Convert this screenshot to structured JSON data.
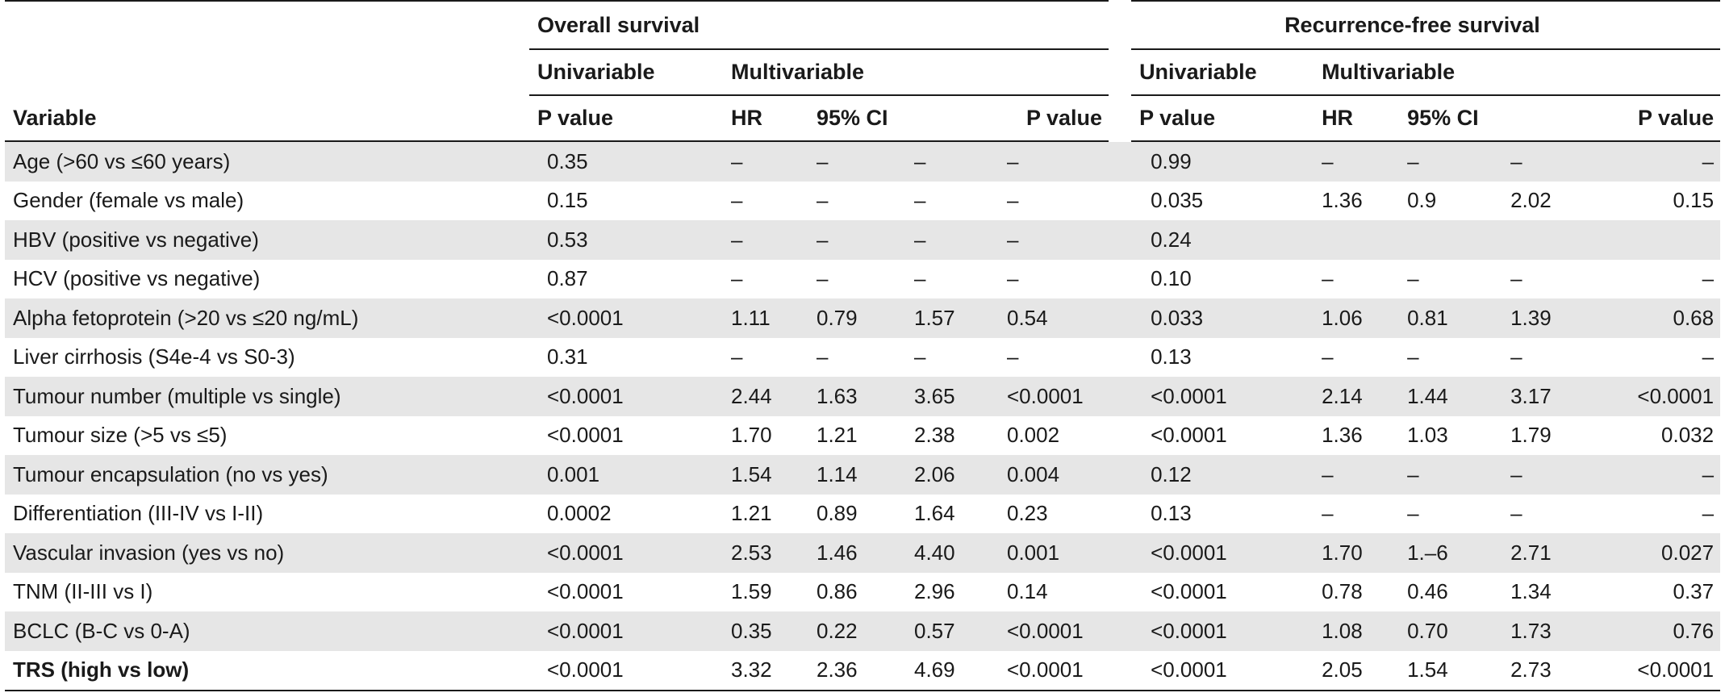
{
  "table": {
    "headers": {
      "variable": "Variable",
      "overall_survival": "Overall survival",
      "recurrence_free_survival": "Recurrence-free survival",
      "univariable": "Univariable",
      "multivariable": "Multivariable",
      "p_value": "P value",
      "hr": "HR",
      "ci": "95% CI"
    },
    "rows": [
      {
        "variable": "Age (>60 vs ≤60 years)",
        "os_uni_p": "0.35",
        "os_hr": "–",
        "os_ci_low": "–",
        "os_ci_high": "–",
        "os_p": "–",
        "rfs_uni_p": "0.99",
        "rfs_hr": "–",
        "rfs_ci_low": "–",
        "rfs_ci_high": "–",
        "rfs_p": "–"
      },
      {
        "variable": "Gender (female vs male)",
        "os_uni_p": "0.15",
        "os_hr": "–",
        "os_ci_low": "–",
        "os_ci_high": "–",
        "os_p": "–",
        "rfs_uni_p": "0.035",
        "rfs_hr": "1.36",
        "rfs_ci_low": "0.9",
        "rfs_ci_high": "2.02",
        "rfs_p": "0.15"
      },
      {
        "variable": "HBV (positive vs negative)",
        "os_uni_p": "0.53",
        "os_hr": "–",
        "os_ci_low": "–",
        "os_ci_high": "–",
        "os_p": "–",
        "rfs_uni_p": "0.24",
        "rfs_hr": "",
        "rfs_ci_low": "",
        "rfs_ci_high": "",
        "rfs_p": ""
      },
      {
        "variable": "HCV (positive vs negative)",
        "os_uni_p": "0.87",
        "os_hr": "–",
        "os_ci_low": "–",
        "os_ci_high": "–",
        "os_p": "–",
        "rfs_uni_p": "0.10",
        "rfs_hr": "–",
        "rfs_ci_low": "–",
        "rfs_ci_high": "–",
        "rfs_p": "–"
      },
      {
        "variable": "Alpha fetoprotein (>20 vs ≤20 ng/mL)",
        "os_uni_p": "<0.0001",
        "os_hr": "1.11",
        "os_ci_low": "0.79",
        "os_ci_high": "1.57",
        "os_p": "0.54",
        "rfs_uni_p": "0.033",
        "rfs_hr": "1.06",
        "rfs_ci_low": "0.81",
        "rfs_ci_high": "1.39",
        "rfs_p": "0.68"
      },
      {
        "variable": "Liver cirrhosis (S4e-4 vs S0-3)",
        "os_uni_p": "0.31",
        "os_hr": "–",
        "os_ci_low": "–",
        "os_ci_high": "–",
        "os_p": "–",
        "rfs_uni_p": "0.13",
        "rfs_hr": "–",
        "rfs_ci_low": "–",
        "rfs_ci_high": "–",
        "rfs_p": "–"
      },
      {
        "variable": "Tumour number (multiple vs single)",
        "os_uni_p": "<0.0001",
        "os_hr": "2.44",
        "os_ci_low": "1.63",
        "os_ci_high": "3.65",
        "os_p": "<0.0001",
        "rfs_uni_p": "<0.0001",
        "rfs_hr": "2.14",
        "rfs_ci_low": "1.44",
        "rfs_ci_high": "3.17",
        "rfs_p": "<0.0001"
      },
      {
        "variable": "Tumour size (>5 vs ≤5)",
        "os_uni_p": "<0.0001",
        "os_hr": "1.70",
        "os_ci_low": "1.21",
        "os_ci_high": "2.38",
        "os_p": "0.002",
        "rfs_uni_p": "<0.0001",
        "rfs_hr": "1.36",
        "rfs_ci_low": "1.03",
        "rfs_ci_high": "1.79",
        "rfs_p": "0.032"
      },
      {
        "variable": "Tumour encapsulation (no vs yes)",
        "os_uni_p": "0.001",
        "os_hr": "1.54",
        "os_ci_low": "1.14",
        "os_ci_high": "2.06",
        "os_p": "0.004",
        "rfs_uni_p": "0.12",
        "rfs_hr": "–",
        "rfs_ci_low": "–",
        "rfs_ci_high": "–",
        "rfs_p": "–"
      },
      {
        "variable": "Differentiation (III-IV vs I-II)",
        "os_uni_p": "0.0002",
        "os_hr": "1.21",
        "os_ci_low": "0.89",
        "os_ci_high": "1.64",
        "os_p": "0.23",
        "rfs_uni_p": "0.13",
        "rfs_hr": "–",
        "rfs_ci_low": "–",
        "rfs_ci_high": "–",
        "rfs_p": "–"
      },
      {
        "variable": "Vascular invasion (yes vs no)",
        "os_uni_p": "<0.0001",
        "os_hr": "2.53",
        "os_ci_low": "1.46",
        "os_ci_high": "4.40",
        "os_p": "0.001",
        "rfs_uni_p": "<0.0001",
        "rfs_hr": "1.70",
        "rfs_ci_low": "1.–6",
        "rfs_ci_high": "2.71",
        "rfs_p": "0.027"
      },
      {
        "variable": "TNM (II-III vs I)",
        "os_uni_p": "<0.0001",
        "os_hr": "1.59",
        "os_ci_low": "0.86",
        "os_ci_high": "2.96",
        "os_p": "0.14",
        "rfs_uni_p": "<0.0001",
        "rfs_hr": "0.78",
        "rfs_ci_low": "0.46",
        "rfs_ci_high": "1.34",
        "rfs_p": "0.37"
      },
      {
        "variable": "BCLC (B-C vs 0-A)",
        "os_uni_p": "<0.0001",
        "os_hr": "0.35",
        "os_ci_low": "0.22",
        "os_ci_high": "0.57",
        "os_p": "<0.0001",
        "rfs_uni_p": "<0.0001",
        "rfs_hr": "1.08",
        "rfs_ci_low": "0.70",
        "rfs_ci_high": "1.73",
        "rfs_p": "0.76"
      },
      {
        "variable": "TRS (high vs low)",
        "os_uni_p": "<0.0001",
        "os_hr": "3.32",
        "os_ci_low": "2.36",
        "os_ci_high": "4.69",
        "os_p": "<0.0001",
        "rfs_uni_p": "<0.0001",
        "rfs_hr": "2.05",
        "rfs_ci_low": "1.54",
        "rfs_ci_high": "2.73",
        "rfs_p": "<0.0001",
        "bold_variable": true
      }
    ]
  }
}
